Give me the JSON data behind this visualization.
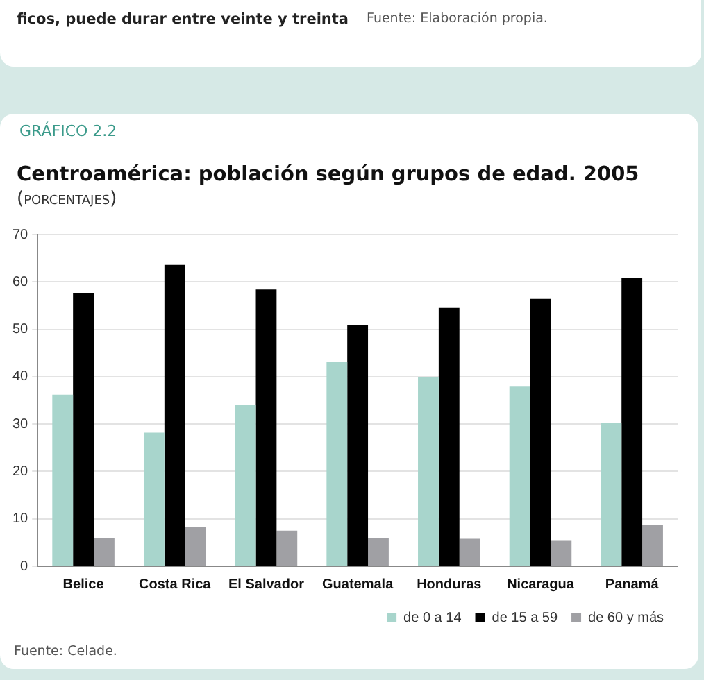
{
  "chart_data": {
    "type": "bar",
    "title": "Centroamérica: población según grupos de edad. 2005",
    "subtitle": "(porcentajes)",
    "annotations": [
      "ficos, puede durar entre veinte y treinta",
      "Fuente: Elaboración propia.",
      "GRÁFICO 2.2",
      "Fuente: Celade."
    ],
    "categories": [
      "Belice",
      "Costa Rica",
      "El Salvador",
      "Guatemala",
      "Honduras",
      "Nicaragua",
      "Panamá"
    ],
    "series": [
      {
        "name": "de 0 a 14",
        "color": "#a8d5cc",
        "values": [
          36.2,
          28.2,
          34.0,
          43.2,
          39.9,
          37.9,
          30.2
        ]
      },
      {
        "name": "de 15 a 59",
        "color": "#000000",
        "values": [
          57.7,
          63.6,
          58.4,
          50.8,
          54.5,
          56.4,
          60.9
        ]
      },
      {
        "name": "de 60 y más",
        "color": "#a0a0a4",
        "values": [
          6.0,
          8.2,
          7.5,
          6.0,
          5.8,
          5.5,
          8.7
        ]
      }
    ],
    "ylim": [
      0,
      70
    ],
    "yticks": [
      0,
      10,
      20,
      30,
      40,
      50,
      60,
      70
    ],
    "grid": "y",
    "legend": "bottom right"
  }
}
